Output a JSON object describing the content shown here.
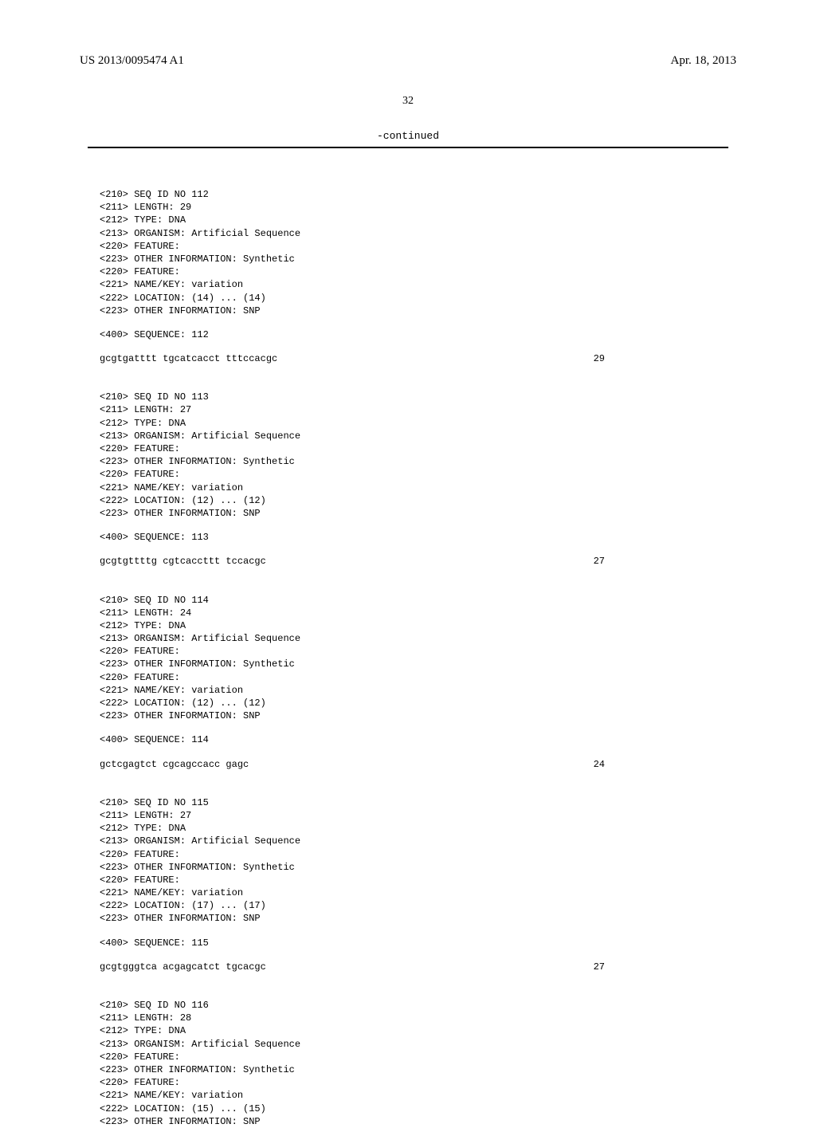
{
  "header": {
    "publication_number": "US 2013/0095474 A1",
    "publication_date": "Apr. 18, 2013"
  },
  "page_number": "32",
  "continued_label": "-continued",
  "sequences": [
    {
      "id": "112",
      "length": "29",
      "type": "DNA",
      "organism": "Artificial Sequence",
      "other_info_1": "Synthetic",
      "name_key": "variation",
      "location": "(14) ... (14)",
      "other_info_2": "SNP",
      "sequence_text": "gcgtgatttt tgcatcacct tttccacgc",
      "sequence_len": "29"
    },
    {
      "id": "113",
      "length": "27",
      "type": "DNA",
      "organism": "Artificial Sequence",
      "other_info_1": "Synthetic",
      "name_key": "variation",
      "location": "(12) ... (12)",
      "other_info_2": "SNP",
      "sequence_text": "gcgtgttttg cgtcaccttt tccacgc",
      "sequence_len": "27"
    },
    {
      "id": "114",
      "length": "24",
      "type": "DNA",
      "organism": "Artificial Sequence",
      "other_info_1": "Synthetic",
      "name_key": "variation",
      "location": "(12) ... (12)",
      "other_info_2": "SNP",
      "sequence_text": "gctcgagtct cgcagccacc gagc",
      "sequence_len": "24"
    },
    {
      "id": "115",
      "length": "27",
      "type": "DNA",
      "organism": "Artificial Sequence",
      "other_info_1": "Synthetic",
      "name_key": "variation",
      "location": "(17) ... (17)",
      "other_info_2": "SNP",
      "sequence_text": "gcgtgggtca acgagcatct tgcacgc",
      "sequence_len": "27"
    },
    {
      "id": "116",
      "length": "28",
      "type": "DNA",
      "organism": "Artificial Sequence",
      "other_info_1": "Synthetic",
      "name_key": "variation",
      "location": "(15) ... (15)",
      "other_info_2": "SNP",
      "sequence_text": "",
      "sequence_len": ""
    }
  ],
  "labels": {
    "seq_id_prefix": "<210> SEQ ID NO ",
    "length_prefix": "<211> LENGTH: ",
    "type_prefix": "<212> TYPE: ",
    "organism_prefix": "<213> ORGANISM: ",
    "feature": "<220> FEATURE:",
    "other_info_prefix": "<223> OTHER INFORMATION: ",
    "name_key_prefix": "<221> NAME/KEY: ",
    "location_prefix": "<222> LOCATION: ",
    "sequence_prefix": "<400> SEQUENCE: "
  }
}
